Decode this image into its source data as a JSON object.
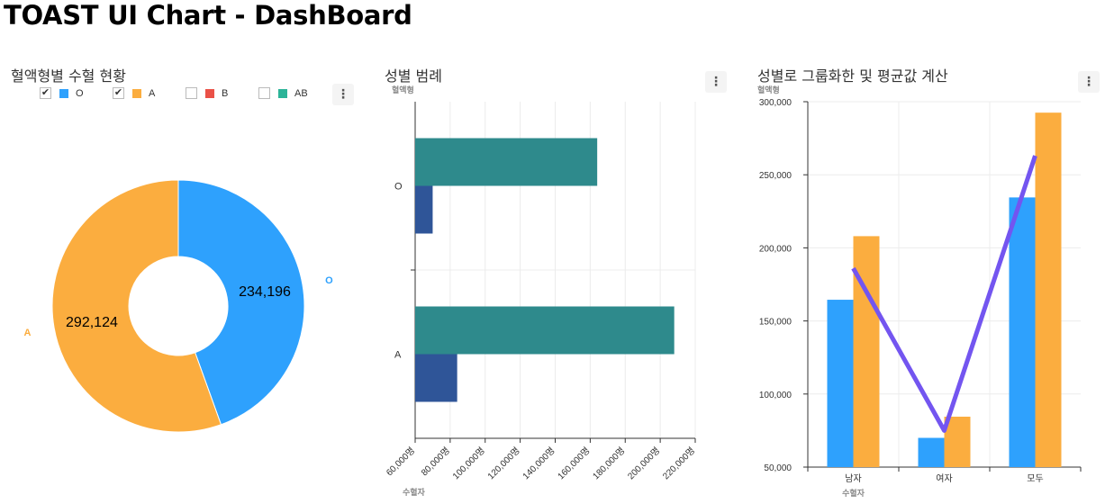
{
  "page": {
    "title": "TOAST UI Chart - DashBoard"
  },
  "menu_icon": "more-vertical-icon",
  "chart_data": [
    {
      "type": "pie",
      "title": "혈액형별 수혈 현황",
      "legend": {
        "placement": "top",
        "items": [
          {
            "label": "O",
            "color": "#2ea1fd",
            "checked": true
          },
          {
            "label": "A",
            "color": "#fbad3f",
            "checked": true
          },
          {
            "label": "B",
            "color": "#ea5147",
            "checked": false
          },
          {
            "label": "AB",
            "color": "#2cb498",
            "checked": false
          }
        ]
      },
      "slices": [
        {
          "label": "O",
          "value": 234196,
          "display": "234,196",
          "color": "#2ea1fd"
        },
        {
          "label": "A",
          "value": 292124,
          "display": "292,124",
          "color": "#fbad3f"
        }
      ]
    },
    {
      "type": "bar",
      "orientation": "horizontal",
      "title": "성별 범례",
      "ylabel": "혈액형",
      "xlabel": "수혈자",
      "categories": [
        "O",
        "A"
      ],
      "series": [
        {
          "values": [
            164000,
            208000
          ],
          "color": "#2e8a8c"
        },
        {
          "values": [
            70000,
            84000
          ],
          "color": "#2f5598"
        }
      ],
      "xlim": [
        60000,
        220000
      ],
      "ticks": [
        "60,000명",
        "80,000명",
        "100,000명",
        "120,000명",
        "140,000명",
        "160,000명",
        "180,000명",
        "200,000명",
        "220,000명"
      ],
      "grid": true
    },
    {
      "type": "bar",
      "title": "성별로 그룹화한 및 평균값 계산",
      "ylabel": "혈액형",
      "xlabel": "수혈자",
      "categories": [
        "남자",
        "여자",
        "모두"
      ],
      "series": [
        {
          "type": "bar",
          "values": [
            164500,
            70000,
            234500
          ],
          "color": "#2ea1fd"
        },
        {
          "type": "bar",
          "values": [
            208000,
            84500,
            292500
          ],
          "color": "#fbad3f"
        },
        {
          "type": "line",
          "values": [
            186000,
            75000,
            263000
          ],
          "color": "#7355f0"
        }
      ],
      "ylim": [
        50000,
        300000
      ],
      "ticks": [
        "50,000",
        "100,000",
        "150,000",
        "200,000",
        "250,000",
        "300,000"
      ],
      "grid": true
    }
  ]
}
